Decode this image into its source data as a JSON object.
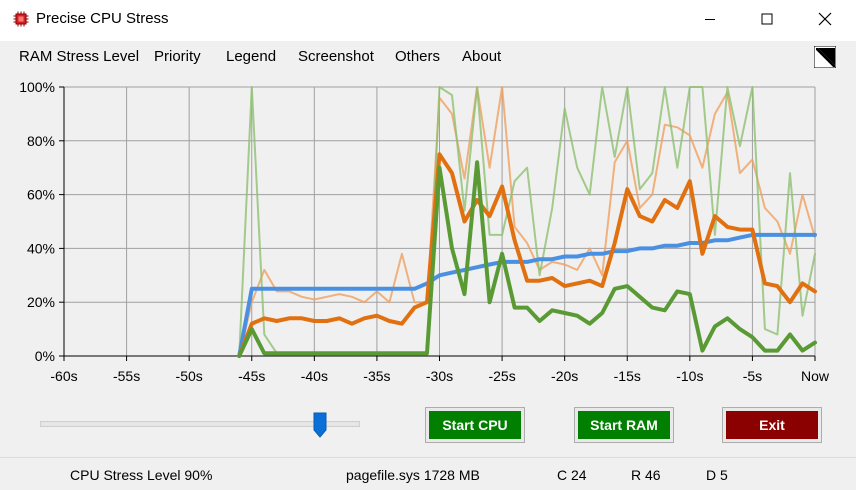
{
  "window": {
    "title": "Precise CPU Stress"
  },
  "menu": {
    "items": [
      "RAM Stress Level",
      "Priority",
      "Legend",
      "Screenshot",
      "Others",
      "About"
    ]
  },
  "chart_data": {
    "type": "line",
    "title": "",
    "xlabel": "",
    "ylabel": "",
    "x": [
      -46,
      -45,
      -44,
      -43,
      -42,
      -41,
      -40,
      -39,
      -38,
      -37,
      -36,
      -35,
      -34,
      -33,
      -32,
      -31,
      -30,
      -29,
      -28,
      -27,
      -26,
      -25,
      -24,
      -23,
      -22,
      -21,
      -20,
      -19,
      -18,
      -17,
      -16,
      -15,
      -14,
      -13,
      -12,
      -11,
      -10,
      -9,
      -8,
      -7,
      -6,
      -5,
      -4,
      -3,
      -2,
      -1,
      0
    ],
    "xlim": [
      -60,
      0
    ],
    "ylim": [
      0,
      100
    ],
    "xticks": [
      -60,
      -55,
      -50,
      -45,
      -40,
      -35,
      -30,
      -25,
      -20,
      -15,
      -10,
      -5,
      0
    ],
    "xtick_labels": [
      "-60s",
      "-55s",
      "-50s",
      "-45s",
      "-40s",
      "-35s",
      "-30s",
      "-25s",
      "-20s",
      "-15s",
      "-10s",
      "-5s",
      "Now"
    ],
    "yticks": [
      0,
      20,
      40,
      60,
      80,
      100
    ],
    "ytick_labels": [
      "0%",
      "20%",
      "40%",
      "60%",
      "80%",
      "100%"
    ],
    "grid": true,
    "series": [
      {
        "color": "#4a90e2",
        "width": 4,
        "opacity": 1,
        "values": [
          0,
          25,
          25,
          25,
          25,
          25,
          25,
          25,
          25,
          25,
          25,
          25,
          25,
          25,
          25,
          27,
          30,
          31,
          32,
          33,
          34,
          35,
          35,
          35,
          36,
          36,
          37,
          37,
          38,
          38,
          39,
          39,
          40,
          40,
          41,
          41,
          42,
          42,
          43,
          43,
          44,
          45,
          45,
          45,
          45,
          45,
          45
        ]
      },
      {
        "color": "#e07010",
        "width": 4,
        "opacity": 1,
        "values": [
          0,
          12,
          14,
          13,
          14,
          14,
          13,
          13,
          14,
          12,
          14,
          15,
          13,
          12,
          18,
          20,
          75,
          68,
          50,
          58,
          52,
          63,
          43,
          28,
          28,
          29,
          26,
          27,
          28,
          26,
          42,
          62,
          52,
          50,
          58,
          55,
          65,
          38,
          52,
          48,
          47,
          47,
          27,
          26,
          20,
          27,
          24
        ]
      },
      {
        "color": "#5a9a35",
        "width": 4,
        "opacity": 1,
        "values": [
          0,
          10,
          1,
          1,
          1,
          1,
          1,
          1,
          1,
          1,
          1,
          1,
          1,
          1,
          1,
          1,
          70,
          40,
          23,
          72,
          20,
          38,
          18,
          18,
          13,
          17,
          16,
          15,
          12,
          16,
          25,
          26,
          22,
          18,
          17,
          24,
          23,
          2,
          11,
          14,
          10,
          7,
          2,
          2,
          8,
          2,
          5
        ]
      },
      {
        "color": "#f0a060",
        "width": 2,
        "opacity": 0.8,
        "values": [
          0,
          20,
          32,
          24,
          24,
          22,
          21,
          22,
          23,
          22,
          20,
          24,
          20,
          38,
          20,
          20,
          96,
          90,
          66,
          100,
          70,
          100,
          48,
          42,
          32,
          35,
          34,
          32,
          40,
          30,
          72,
          80,
          55,
          60,
          86,
          85,
          82,
          70,
          90,
          98,
          68,
          73,
          55,
          50,
          38,
          60,
          44
        ]
      },
      {
        "color": "#8fc070",
        "width": 2,
        "opacity": 0.8,
        "values": [
          0,
          100,
          8,
          1,
          1,
          1,
          1,
          1,
          1,
          1,
          1,
          1,
          1,
          1,
          1,
          1,
          100,
          97,
          54,
          100,
          45,
          45,
          65,
          70,
          30,
          55,
          92,
          70,
          60,
          100,
          74,
          100,
          62,
          68,
          100,
          70,
          100,
          100,
          45,
          100,
          78,
          100,
          10,
          8,
          68,
          15,
          38
        ]
      }
    ]
  },
  "slider": {
    "value": 0.88
  },
  "buttons": {
    "start_cpu": "Start CPU",
    "start_ram": "Start RAM",
    "exit": "Exit"
  },
  "colors": {
    "start_button": "#007f00",
    "exit_button": "#8b0000"
  },
  "status": {
    "cpu_level": "CPU Stress Level 90%",
    "pagefile": "pagefile.sys 1728 MB",
    "c": "C 24",
    "r": "R 46",
    "d": "D 5"
  }
}
